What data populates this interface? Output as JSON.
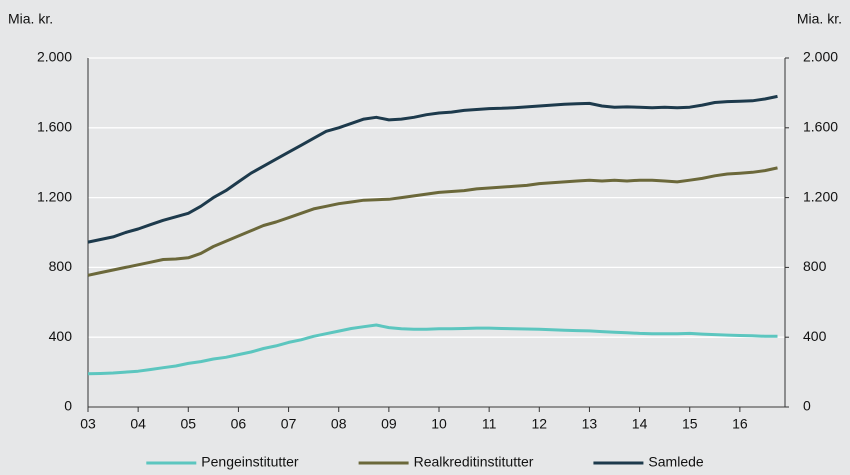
{
  "chart_data": {
    "type": "line",
    "y_label": "Mia. kr.",
    "y2_label": "Mia. kr.",
    "x": [
      3,
      3.25,
      3.5,
      3.75,
      4,
      4.25,
      4.5,
      4.75,
      5,
      5.25,
      5.5,
      5.75,
      6,
      6.25,
      6.5,
      6.75,
      7,
      7.25,
      7.5,
      7.75,
      8,
      8.25,
      8.5,
      8.75,
      9,
      9.25,
      9.5,
      9.75,
      10,
      10.25,
      10.5,
      10.75,
      11,
      11.25,
      11.5,
      11.75,
      12,
      12.25,
      12.5,
      12.75,
      13,
      13.25,
      13.5,
      13.75,
      14,
      14.25,
      14.5,
      14.75,
      15,
      15.25,
      15.5,
      15.75,
      16,
      16.25,
      16.5,
      16.75
    ],
    "xlim": [
      3,
      16.9
    ],
    "xticks": [
      {
        "value": 3,
        "label": "03"
      },
      {
        "value": 4,
        "label": "04"
      },
      {
        "value": 5,
        "label": "05"
      },
      {
        "value": 6,
        "label": "06"
      },
      {
        "value": 7,
        "label": "07"
      },
      {
        "value": 8,
        "label": "08"
      },
      {
        "value": 9,
        "label": "09"
      },
      10,
      11,
      12,
      13,
      14,
      15,
      16
    ],
    "ylim": [
      0,
      2000
    ],
    "yticks": [
      0,
      400,
      800,
      {
        "value": 1200,
        "label": "1.200"
      },
      {
        "value": 1600,
        "label": "1.600"
      },
      {
        "value": 2000,
        "label": "2.000"
      }
    ],
    "y2lim": [
      0,
      2000
    ],
    "y2ticks": [
      0,
      400,
      800,
      {
        "value": 1200,
        "label": "1.200"
      },
      {
        "value": 1600,
        "label": "1.600"
      },
      {
        "value": 2000,
        "label": "2.000"
      }
    ],
    "grid": true,
    "legend": "bottom",
    "series": [
      {
        "name": "Pengeinstitutter",
        "color": "#5cc6bf",
        "values": [
          190,
          192,
          195,
          200,
          205,
          215,
          225,
          235,
          250,
          260,
          275,
          285,
          300,
          315,
          335,
          350,
          370,
          385,
          405,
          420,
          435,
          450,
          460,
          470,
          455,
          448,
          445,
          445,
          448,
          448,
          450,
          452,
          452,
          450,
          448,
          447,
          445,
          443,
          440,
          438,
          436,
          432,
          428,
          425,
          422,
          420,
          420,
          420,
          422,
          418,
          415,
          412,
          410,
          408,
          405,
          405
        ]
      },
      {
        "name": "Realkreditinstitutter",
        "color": "#6b683a",
        "values": [
          755,
          770,
          785,
          800,
          815,
          830,
          845,
          848,
          855,
          880,
          920,
          950,
          980,
          1010,
          1040,
          1060,
          1085,
          1110,
          1135,
          1150,
          1165,
          1175,
          1185,
          1188,
          1190,
          1200,
          1210,
          1220,
          1230,
          1235,
          1240,
          1250,
          1255,
          1260,
          1265,
          1270,
          1280,
          1285,
          1290,
          1295,
          1300,
          1295,
          1300,
          1295,
          1300,
          1300,
          1295,
          1290,
          1300,
          1310,
          1325,
          1335,
          1340,
          1345,
          1355,
          1370
        ]
      },
      {
        "name": "Samlede",
        "color": "#1d3a4c",
        "values": [
          945,
          960,
          975,
          1000,
          1020,
          1045,
          1070,
          1090,
          1110,
          1150,
          1200,
          1240,
          1290,
          1340,
          1380,
          1420,
          1460,
          1500,
          1540,
          1580,
          1600,
          1625,
          1650,
          1660,
          1645,
          1650,
          1660,
          1675,
          1685,
          1690,
          1700,
          1705,
          1710,
          1712,
          1715,
          1720,
          1725,
          1730,
          1735,
          1738,
          1740,
          1725,
          1718,
          1720,
          1718,
          1715,
          1718,
          1715,
          1718,
          1730,
          1745,
          1750,
          1752,
          1755,
          1765,
          1780
        ]
      }
    ]
  }
}
